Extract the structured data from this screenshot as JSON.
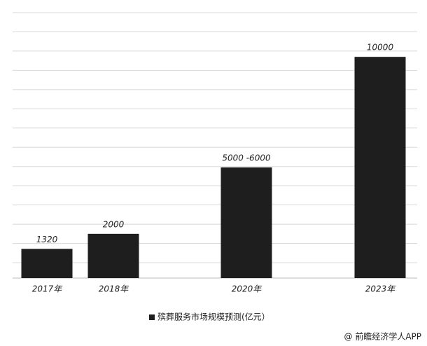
{
  "chart_data": {
    "type": "bar",
    "categories": [
      "2017年",
      "2018年",
      "2020年",
      "2023年"
    ],
    "series": [
      {
        "name": "殡葬服务市场规模预测(亿元）",
        "color": "#1e1e1e",
        "values": [
          1320,
          2000,
          5000,
          10000
        ],
        "value_labels": [
          "1320",
          "2000",
          "5000 -6000",
          "10000"
        ]
      }
    ],
    "ylim": [
      0,
      12000
    ],
    "grid": true,
    "legend": "bottom",
    "source": "@ 前瞻经济学人APP"
  }
}
